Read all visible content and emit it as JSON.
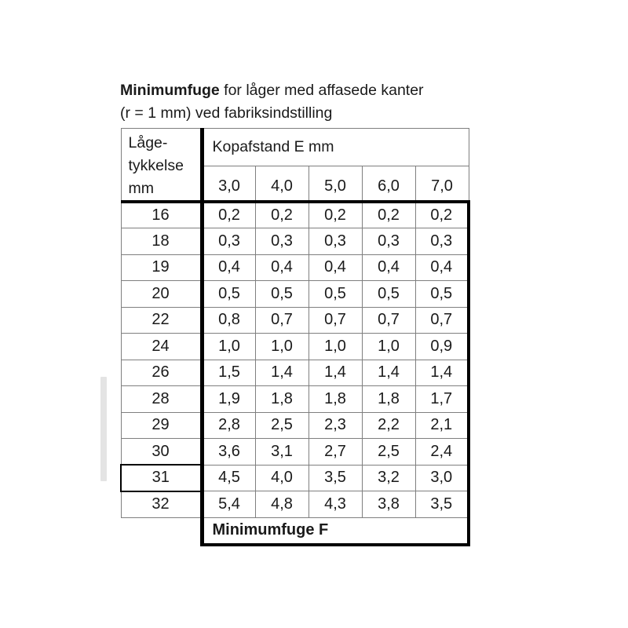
{
  "title": {
    "bold": "Minimumfuge",
    "rest": " for låger med affasede kanter",
    "line2": "(r = 1 mm) ved fabriksindstilling"
  },
  "table": {
    "corner_header_lines": [
      "Låge-",
      "tykkelse",
      "mm"
    ],
    "col_group_header": "Kopafstand E mm",
    "col_headers": [
      "3,0",
      "4,0",
      "5,0",
      "6,0",
      "7,0"
    ],
    "rows": [
      {
        "thickness": "16",
        "values": [
          "0,2",
          "0,2",
          "0,2",
          "0,2",
          "0,2"
        ]
      },
      {
        "thickness": "18",
        "values": [
          "0,3",
          "0,3",
          "0,3",
          "0,3",
          "0,3"
        ]
      },
      {
        "thickness": "19",
        "values": [
          "0,4",
          "0,4",
          "0,4",
          "0,4",
          "0,4"
        ]
      },
      {
        "thickness": "20",
        "values": [
          "0,5",
          "0,5",
          "0,5",
          "0,5",
          "0,5"
        ]
      },
      {
        "thickness": "22",
        "values": [
          "0,8",
          "0,7",
          "0,7",
          "0,7",
          "0,7"
        ]
      },
      {
        "thickness": "24",
        "values": [
          "1,0",
          "1,0",
          "1,0",
          "1,0",
          "0,9"
        ]
      },
      {
        "thickness": "26",
        "values": [
          "1,5",
          "1,4",
          "1,4",
          "1,4",
          "1,4"
        ]
      },
      {
        "thickness": "28",
        "values": [
          "1,9",
          "1,8",
          "1,8",
          "1,8",
          "1,7"
        ]
      },
      {
        "thickness": "29",
        "values": [
          "2,8",
          "2,5",
          "2,3",
          "2,2",
          "2,1"
        ]
      },
      {
        "thickness": "30",
        "values": [
          "3,6",
          "3,1",
          "2,7",
          "2,5",
          "2,4"
        ]
      },
      {
        "thickness": "31",
        "values": [
          "4,5",
          "4,0",
          "3,5",
          "3,2",
          "3,0"
        ]
      },
      {
        "thickness": "32",
        "values": [
          "5,4",
          "4,8",
          "4,3",
          "3,8",
          "3,5"
        ]
      }
    ],
    "highlighted_thickness": "31",
    "footer_label": "Minimumfuge F"
  }
}
